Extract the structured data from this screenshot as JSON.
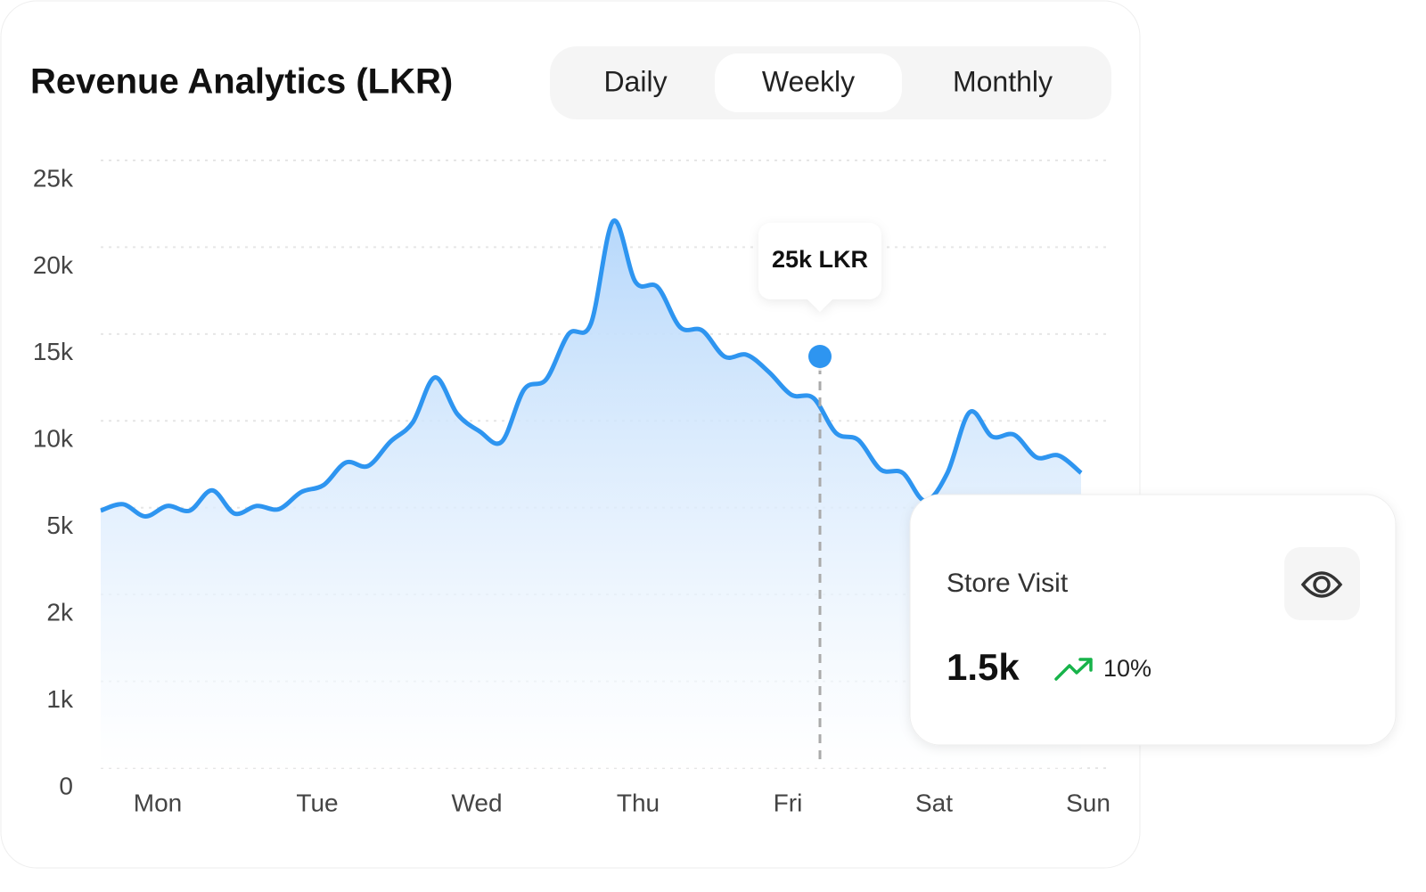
{
  "header": {
    "title": "Revenue Analytics (LKR)",
    "tabs": [
      "Daily",
      "Weekly",
      "Monthly"
    ],
    "active_tab": 1
  },
  "chart_data": {
    "type": "line",
    "xticks": [
      "Mon",
      "Tue",
      "Wed",
      "Thu",
      "Fri",
      "Sat",
      "Sun"
    ],
    "values": [
      4900,
      5200,
      4700,
      5100,
      4900,
      6000,
      4800,
      5100,
      4950,
      5900,
      6300,
      7600,
      7400,
      8800,
      9900,
      12500,
      10400,
      9400,
      8800,
      11800,
      12400,
      15000,
      15600,
      21500,
      18000,
      17700,
      15400,
      15200,
      13700,
      13800,
      12800,
      11500,
      11300,
      9300,
      8900,
      7200,
      7000,
      5400,
      7000,
      10500,
      9100,
      9200,
      7900,
      8000,
      7000
    ],
    "color": "#2e95f0",
    "ylim": [
      0,
      25000
    ],
    "yticks": [
      {
        "value": 0,
        "label": "0"
      },
      {
        "value": 1000,
        "label": "1k"
      },
      {
        "value": 2000,
        "label": "2k"
      },
      {
        "value": 5000,
        "label": "5k"
      },
      {
        "value": 10000,
        "label": "10k"
      },
      {
        "value": 15000,
        "label": "15k"
      },
      {
        "value": 20000,
        "label": "20k"
      },
      {
        "value": 25000,
        "label": "25k"
      }
    ],
    "grid": true,
    "tooltip": "25k LKR"
  },
  "store_visit": {
    "title": "Store Visit",
    "value": "1.5k",
    "change": "10%"
  }
}
